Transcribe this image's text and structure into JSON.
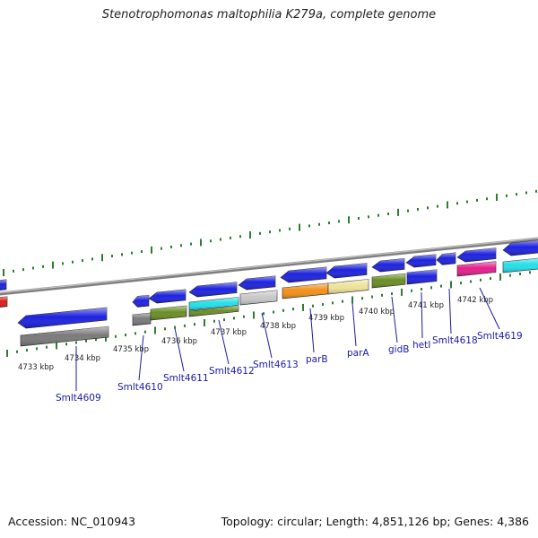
{
  "header": {
    "title": "Stenotrophomonas maltophilia K279a, complete genome"
  },
  "footer": {
    "accession": "Accession: NC_010943",
    "summary": "Topology: circular; Length: 4,851,126 bp; Genes: 4,386"
  },
  "scale_labels": [
    "4733 kbp",
    "4734 kbp",
    "4735 kbp",
    "4736 kbp",
    "4737 kbp",
    "4738 kbp",
    "4739 kbp",
    "4740 kbp",
    "4741 kbp",
    "4742 kbp"
  ],
  "gene_labels": [
    "Smlt4609",
    "Smlt4610",
    "Smlt4611",
    "Smlt4612",
    "Smlt4613",
    "parB",
    "parA",
    "gidB",
    "hetI",
    "Smlt4618",
    "Smlt4619"
  ],
  "colors": {
    "backbone": "#7f7f7f",
    "tick_major": "#2e7d2e",
    "tick_minor": "#2e7d2e",
    "gene_blue": "#1d22e0",
    "label_blue": "#1a1aa8",
    "red": "#e11a1a",
    "olive": "#6b8e23",
    "grey": "#7a7a7a",
    "light_grey": "#c8c8c8",
    "cyan": "#24e0e8",
    "orange": "#f39019",
    "khaki": "#ede39a",
    "magenta": "#e51f8c"
  }
}
